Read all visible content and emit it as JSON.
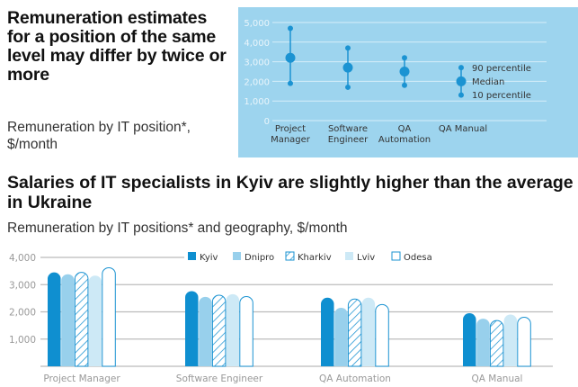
{
  "top": {
    "heading": "Remuneration estimates for a position of the same level may differ by twice or more",
    "subtitle": "Remuneration by IT position*, $/month"
  },
  "bottom": {
    "heading": "Salaries of IT specialists in Kyiv are slightly higher than the average in Ukraine",
    "subtitle": "Remuneration by IT positions* and geography, $/month"
  },
  "chart_data": [
    {
      "type": "scatter",
      "title": "Remuneration by IT position*, $/month",
      "ylim": [
        0,
        5000
      ],
      "yticks": [
        "0",
        "1,000",
        "2,000",
        "3,000",
        "4,000",
        "5,000"
      ],
      "categories": [
        "Project\nManager",
        "Software\nEngineer",
        "QA\nAutomation",
        "QA Manual"
      ],
      "series": [
        {
          "name": "10 percentile",
          "values": [
            1900,
            1700,
            1800,
            1300
          ]
        },
        {
          "name": "Median",
          "values": [
            3200,
            2700,
            2500,
            2000
          ]
        },
        {
          "name": "90 percentile",
          "values": [
            4700,
            3700,
            3200,
            2700
          ]
        }
      ],
      "legend": {
        "p90": "90  percentile",
        "median": "Median",
        "p10": "10  percentile"
      },
      "background": "#9dd4ee",
      "accent": "#1b93d2"
    },
    {
      "type": "bar",
      "ylim": [
        0,
        4000
      ],
      "yticks": [
        "1,000",
        "2,000",
        "3,000",
        "4,000"
      ],
      "categories": [
        "Project Manager",
        "Software Engineer",
        "QA Automation",
        "QA Manual"
      ],
      "series": [
        {
          "name": "Kyiv",
          "values": [
            3450,
            2760,
            2520,
            1950
          ],
          "color": "#0f8fd0"
        },
        {
          "name": "Dnipro",
          "values": [
            3380,
            2550,
            2150,
            1750
          ],
          "color": "#98d0ec"
        },
        {
          "name": "Kharkiv",
          "values": [
            3450,
            2610,
            2470,
            1680
          ],
          "color": "hatch"
        },
        {
          "name": "Lviv",
          "values": [
            3330,
            2650,
            2520,
            1900
          ],
          "color": "#cde9f6"
        },
        {
          "name": "Odesa",
          "values": [
            3620,
            2560,
            2270,
            1800
          ],
          "color": "outline"
        }
      ],
      "legend": "top"
    }
  ]
}
